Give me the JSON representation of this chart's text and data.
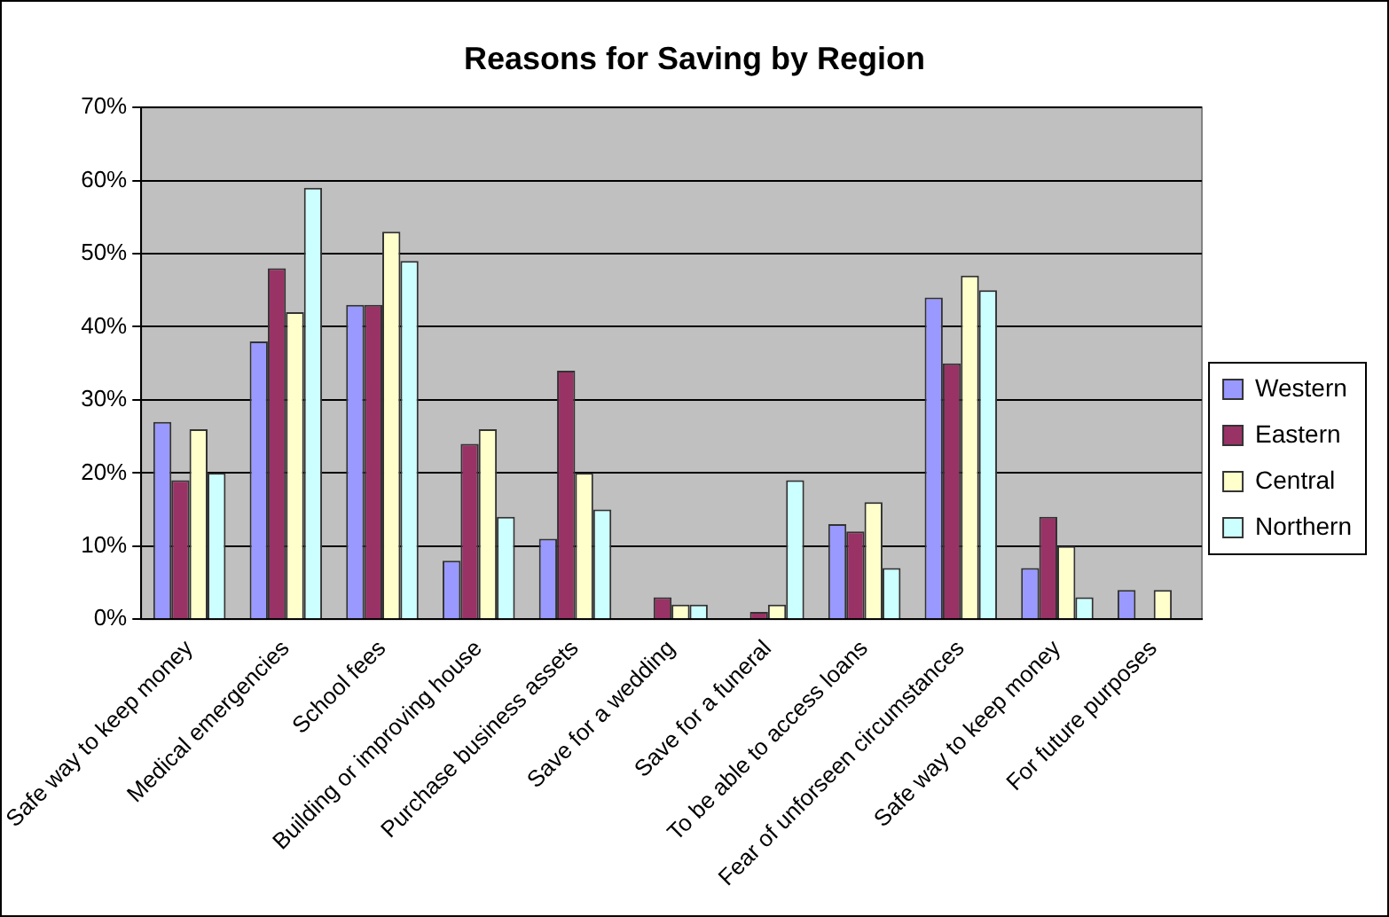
{
  "chart_data": {
    "type": "bar",
    "title": "Reasons for Saving by Region",
    "categories": [
      "Safe way to keep money",
      "Medical emergencies",
      "School fees",
      "Building or improving house",
      "Purchase business assets",
      "Save for a wedding",
      "Save for a funeral",
      "To be able to access loans",
      "Fear of unforseen circumstances",
      "Safe way to keep money",
      "For future purposes"
    ],
    "series": [
      {
        "name": "Western",
        "color": "#9999ff",
        "values": [
          27,
          38,
          43,
          8,
          11,
          0,
          0,
          13,
          44,
          7,
          4
        ]
      },
      {
        "name": "Eastern",
        "color": "#993366",
        "values": [
          19,
          48,
          43,
          24,
          34,
          3,
          1,
          12,
          35,
          14,
          0
        ]
      },
      {
        "name": "Central",
        "color": "#ffffcc",
        "values": [
          26,
          42,
          53,
          26,
          20,
          2,
          2,
          16,
          47,
          10,
          4
        ]
      },
      {
        "name": "Northern",
        "color": "#ccffff",
        "values": [
          20,
          59,
          49,
          14,
          15,
          2,
          19,
          7,
          45,
          3,
          0
        ]
      }
    ],
    "ylim": [
      0,
      70
    ],
    "yticks": [
      {
        "value": 0,
        "label": "0%"
      },
      {
        "value": 10,
        "label": "10%"
      },
      {
        "value": 20,
        "label": "20%"
      },
      {
        "value": 30,
        "label": "30%"
      },
      {
        "value": 40,
        "label": "40%"
      },
      {
        "value": 50,
        "label": "50%"
      },
      {
        "value": 60,
        "label": "60%"
      },
      {
        "value": 70,
        "label": "70%"
      }
    ],
    "grid": "y",
    "legend": "right"
  }
}
